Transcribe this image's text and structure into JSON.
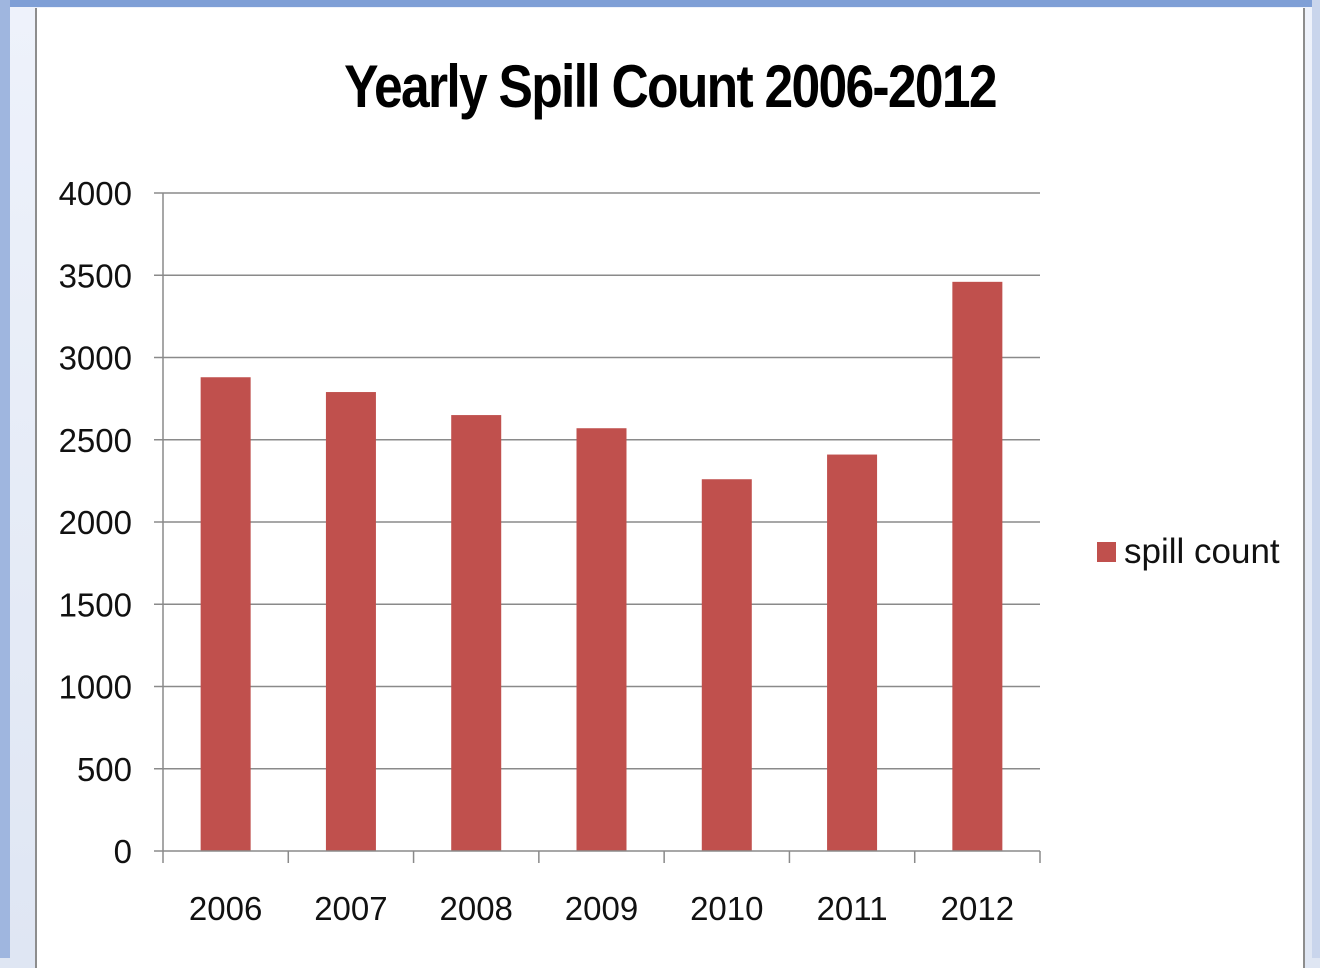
{
  "chart_data": {
    "type": "bar",
    "title": "Yearly Spill Count 2006-2012",
    "categories": [
      "2006",
      "2007",
      "2008",
      "2009",
      "2010",
      "2011",
      "2012"
    ],
    "series": [
      {
        "name": "spill count",
        "values": [
          2880,
          2790,
          2650,
          2570,
          2260,
          2410,
          3460
        ],
        "color": "#c0504d"
      }
    ],
    "ylim": [
      0,
      4000
    ],
    "yticks": [
      "0",
      "500",
      "1000",
      "1500",
      "2000",
      "2500",
      "3000",
      "3500",
      "4000"
    ],
    "grid": true,
    "legend_position": "right",
    "xlabel": "",
    "ylabel": ""
  }
}
